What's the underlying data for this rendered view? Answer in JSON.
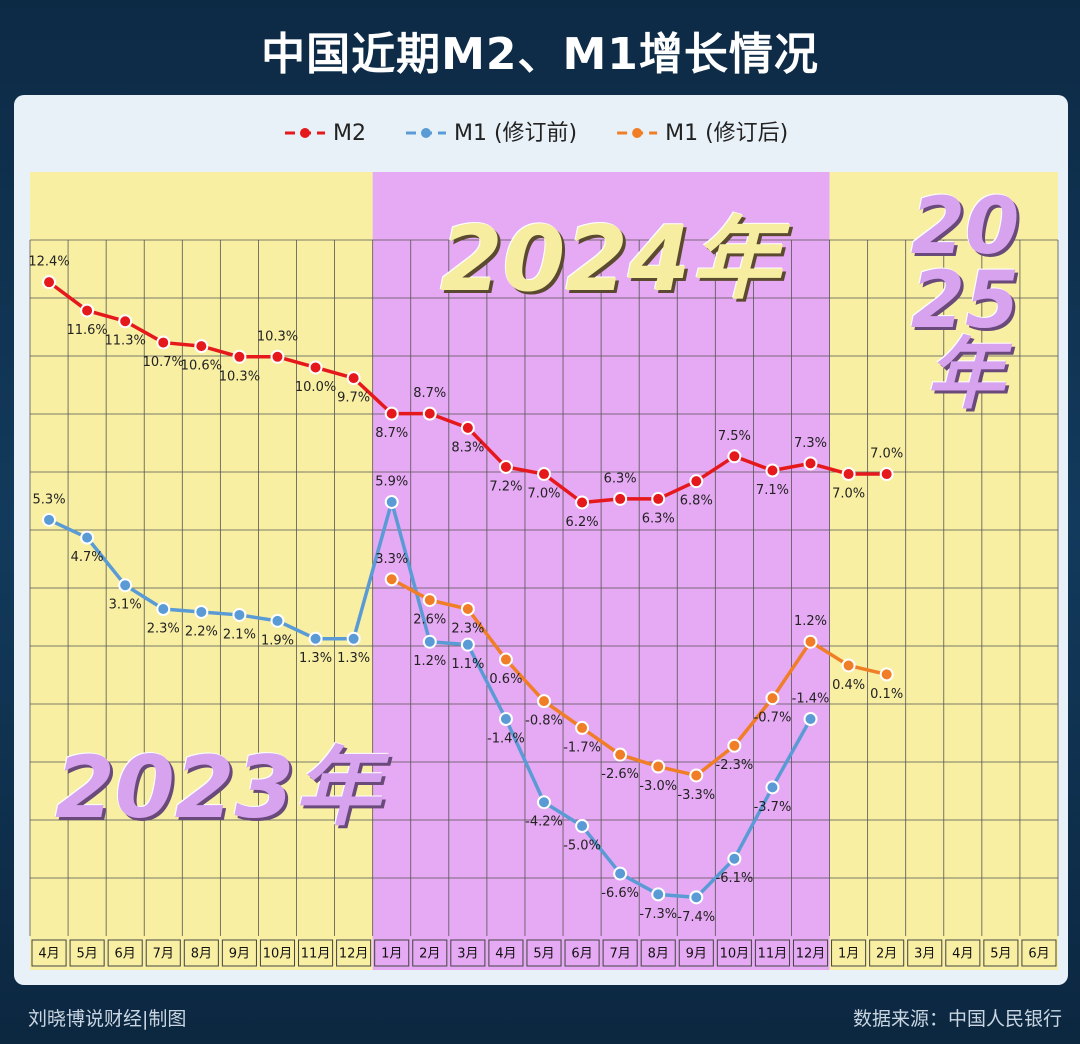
{
  "chart_data": {
    "type": "line",
    "title": "中国近期M2、M1增长情况",
    "categories": [
      "4月",
      "5月",
      "6月",
      "7月",
      "8月",
      "9月",
      "10月",
      "11月",
      "12月",
      "1月",
      "2月",
      "3月",
      "4月",
      "5月",
      "6月",
      "7月",
      "8月",
      "9月",
      "10月",
      "11月",
      "12月",
      "1月",
      "2月",
      "3月",
      "4月",
      "5月",
      "6月"
    ],
    "year_labels": [
      "2023年",
      "2024年",
      "2025年"
    ],
    "year_spans": [
      9,
      12,
      6
    ],
    "year_colors": [
      "#f8efa3",
      "#e6a9f3",
      "#f8efa3"
    ],
    "ylim": [
      -6,
      15.5
    ],
    "y2lim": [
      -8.7,
      17
    ],
    "grid": true,
    "series": [
      {
        "name": "M2",
        "color": "#e5191c",
        "values": [
          12.4,
          11.6,
          11.3,
          10.7,
          10.6,
          10.3,
          10.3,
          10.0,
          9.7,
          8.7,
          8.7,
          8.3,
          7.2,
          7.0,
          6.2,
          6.3,
          6.3,
          6.8,
          7.5,
          7.1,
          7.3,
          7.0,
          7.0,
          null,
          null,
          null,
          null
        ],
        "value_labels": [
          "12.4%",
          "11.6%",
          "11.3%",
          "10.7%",
          "10.6%",
          "10.3%",
          "10.3%",
          "10.0%",
          "9.7%",
          "8.7%",
          "8.7%",
          "8.3%",
          "7.2%",
          "7.0%",
          "6.2%",
          "6.3%",
          "6.3%",
          "6.8%",
          "7.5%",
          "7.1%",
          "7.3%",
          "7.0%",
          "7.0%",
          null,
          null,
          null,
          null
        ]
      },
      {
        "name": "M1 (修订前)",
        "color": "#5b9bd5",
        "axis": "y2",
        "values": [
          5.3,
          4.7,
          3.1,
          2.3,
          2.2,
          2.1,
          1.9,
          1.3,
          1.3,
          5.9,
          1.2,
          1.1,
          -1.4,
          -4.2,
          -5.0,
          -6.6,
          -7.3,
          -7.4,
          -6.1,
          -3.7,
          -1.4,
          null,
          null,
          null,
          null,
          null,
          null
        ],
        "value_labels": [
          "5.3%",
          "4.7%",
          "3.1%",
          "2.3%",
          "2.2%",
          "2.1%",
          "1.9%",
          "1.3%",
          "1.3%",
          "5.9%",
          "1.2%",
          "1.1%",
          "-1.4%",
          "-4.2%",
          "-5.0%",
          "-6.6%",
          "-7.3%",
          "-7.4%",
          "-6.1%",
          "-3.7%",
          "-1.4%",
          null,
          null,
          null,
          null,
          null,
          null
        ]
      },
      {
        "name": "M1 (修订后)",
        "color": "#f07e26",
        "axis": "y2",
        "values": [
          null,
          null,
          null,
          null,
          null,
          null,
          null,
          null,
          null,
          3.3,
          2.6,
          2.3,
          0.6,
          -0.8,
          -1.7,
          -2.6,
          -3.0,
          -3.3,
          -2.3,
          -0.7,
          1.2,
          0.4,
          0.1,
          null,
          null,
          null,
          null
        ],
        "value_labels": [
          null,
          null,
          null,
          null,
          null,
          null,
          null,
          null,
          null,
          "3.3%",
          "2.6%",
          "2.3%",
          "0.6%",
          "-0.8%",
          "-1.7%",
          "-2.6%",
          "-3.0%",
          "-3.3%",
          "-2.3%",
          "-0.7%",
          "1.2%",
          "0.4%",
          "0.1%",
          null,
          null,
          null,
          null
        ]
      }
    ]
  },
  "footer": {
    "credit": "刘晓博说财经|制图",
    "source": "数据来源：中国人民银行"
  }
}
